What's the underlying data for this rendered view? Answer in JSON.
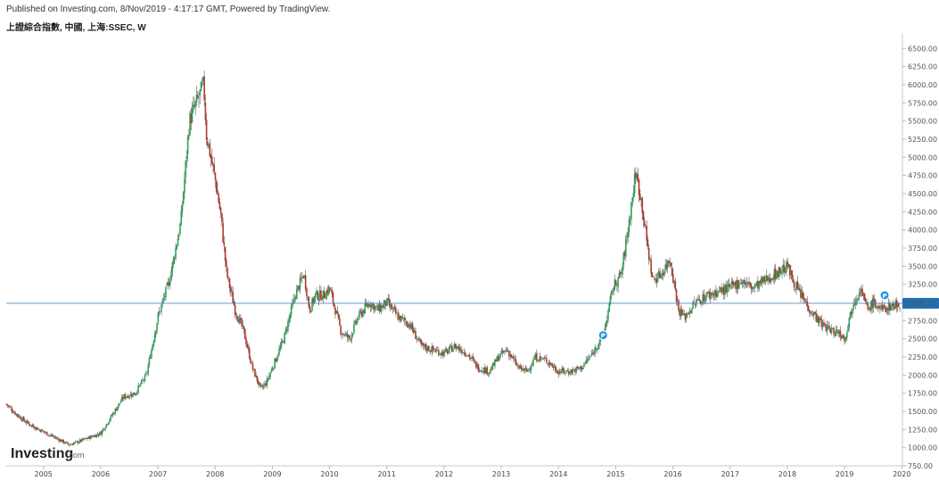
{
  "header": {
    "published": "Published on Investing.com, 8/Nov/2019 - 4:17:17 GMT, Powered by TradingView.",
    "symbol": "上證綜合指數, 中國, 上海:SSEC, W"
  },
  "logo": {
    "word": "Investing",
    "suffix": ".com"
  },
  "last_price": {
    "label": "2989.24",
    "value": 2989.24,
    "color": "#1f6fb5"
  },
  "colors": {
    "up": "#26a65b",
    "down": "#b5382a",
    "wick": "#555555",
    "priceLine": "#3a78b5"
  },
  "chart_data": {
    "type": "candlestick",
    "interval": "weekly",
    "grid": false,
    "ylim": [
      750,
      6700
    ],
    "yticks": [
      750,
      1000,
      1250,
      1500,
      1750,
      2000,
      2250,
      2500,
      2750,
      3000,
      3250,
      3500,
      3750,
      4000,
      4250,
      4500,
      4750,
      5000,
      5250,
      5500,
      5750,
      6000,
      6250,
      6500
    ],
    "ytick_labels": [
      "750.00",
      "1000.00",
      "1250.00",
      "1500.00",
      "1750.00",
      "2000.00",
      "2250.00",
      "2500.00",
      "2750.00",
      "3000.00",
      "3250.00",
      "3500.00",
      "3750.00",
      "4000.00",
      "4250.00",
      "4500.00",
      "4750.00",
      "5000.00",
      "5250.00",
      "5500.00",
      "5750.00",
      "6000.00",
      "6250.00",
      "6500.00"
    ],
    "xlim": [
      2004.35,
      2019.98
    ],
    "xticks": [
      "2005",
      "2006",
      "2007",
      "2008",
      "2009",
      "2010",
      "2011",
      "2012",
      "2013",
      "2014",
      "2015",
      "2016",
      "2017",
      "2018",
      "2019",
      "2020"
    ],
    "markers": [
      {
        "label": "P",
        "x": 2014.78,
        "y": 2550
      },
      {
        "label": "P",
        "x": 2019.7,
        "y": 3100
      }
    ],
    "series": {
      "x": [
        2004.35,
        2004.5,
        2004.7,
        2004.9,
        2005.1,
        2005.3,
        2005.45,
        2005.6,
        2005.8,
        2006.0,
        2006.2,
        2006.4,
        2006.6,
        2006.8,
        2007.0,
        2007.2,
        2007.4,
        2007.55,
        2007.7,
        2007.8,
        2007.85,
        2008.0,
        2008.1,
        2008.2,
        2008.35,
        2008.5,
        2008.65,
        2008.8,
        2008.9,
        2009.0,
        2009.2,
        2009.4,
        2009.55,
        2009.65,
        2009.75,
        2009.9,
        2010.0,
        2010.2,
        2010.35,
        2010.5,
        2010.7,
        2010.85,
        2011.0,
        2011.2,
        2011.4,
        2011.6,
        2011.8,
        2012.0,
        2012.2,
        2012.4,
        2012.6,
        2012.8,
        2012.95,
        2013.1,
        2013.3,
        2013.45,
        2013.6,
        2013.8,
        2014.0,
        2014.2,
        2014.4,
        2014.6,
        2014.8,
        2014.95,
        2015.1,
        2015.25,
        2015.35,
        2015.45,
        2015.55,
        2015.65,
        2015.8,
        2015.95,
        2016.1,
        2016.2,
        2016.4,
        2016.6,
        2016.8,
        2017.0,
        2017.2,
        2017.4,
        2017.6,
        2017.8,
        2018.0,
        2018.1,
        2018.2,
        2018.4,
        2018.6,
        2018.8,
        2018.9,
        2019.0,
        2019.15,
        2019.28,
        2019.4,
        2019.5,
        2019.65,
        2019.8,
        2019.98
      ],
      "close": [
        1600,
        1480,
        1350,
        1260,
        1180,
        1100,
        1040,
        1080,
        1140,
        1200,
        1450,
        1700,
        1750,
        2000,
        2800,
        3300,
        4100,
        5500,
        5800,
        6000,
        5300,
        4700,
        4200,
        3400,
        2900,
        2600,
        2100,
        1800,
        1900,
        2100,
        2500,
        3100,
        3400,
        2900,
        3100,
        3100,
        3200,
        2600,
        2500,
        2800,
        3000,
        2900,
        3000,
        2800,
        2700,
        2400,
        2350,
        2300,
        2400,
        2300,
        2100,
        2050,
        2250,
        2350,
        2100,
        2050,
        2250,
        2200,
        2050,
        2050,
        2100,
        2300,
        2600,
        3200,
        3400,
        4200,
        4800,
        4400,
        3800,
        3300,
        3400,
        3600,
        2900,
        2800,
        3000,
        3100,
        3150,
        3200,
        3300,
        3200,
        3300,
        3400,
        3500,
        3300,
        3150,
        2900,
        2700,
        2600,
        2600,
        2500,
        3000,
        3200,
        2900,
        3000,
        2900,
        2950,
        2989
      ]
    }
  }
}
